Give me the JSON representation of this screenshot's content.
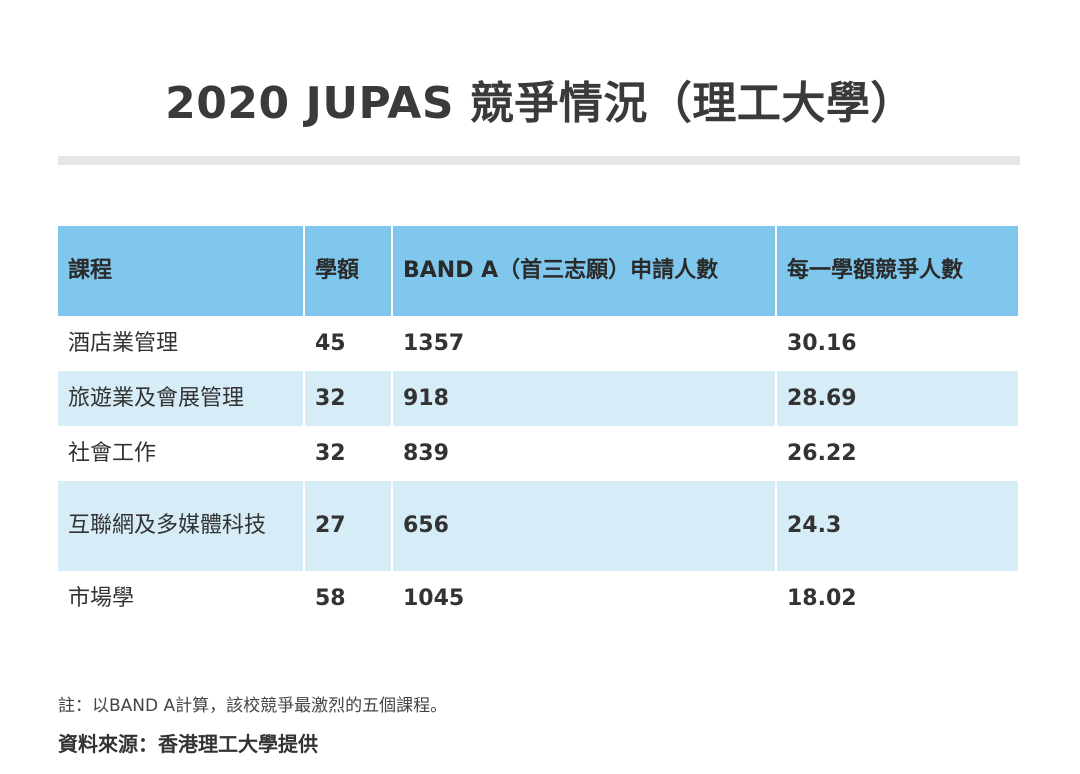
{
  "title": "2020 JUPAS 競爭情況（理工大學）",
  "table": {
    "headers": [
      "課程",
      "學額",
      "BAND A（首三志願）申請人數",
      "每一學額競爭人數"
    ],
    "rows": [
      {
        "course": "酒店業管理",
        "places": "45",
        "applicants": "1357",
        "ratio": "30.16"
      },
      {
        "course": "旅遊業及會展管理",
        "places": "32",
        "applicants": "918",
        "ratio": "28.69"
      },
      {
        "course": "社會工作",
        "places": "32",
        "applicants": "839",
        "ratio": "26.22"
      },
      {
        "course": "互聯網及多媒體科技",
        "places": "27",
        "applicants": "656",
        "ratio": "24.3"
      },
      {
        "course": "市場學",
        "places": "58",
        "applicants": "1045",
        "ratio": "18.02"
      }
    ]
  },
  "note": "註：以BAND A計算，該校競爭最激烈的五個課程。",
  "source": "資料來源：香港理工大學提供",
  "colors": {
    "header_bg": "#7fc7ec",
    "stripe_bg": "#d6edf8",
    "rule": "#e6e6e6"
  }
}
